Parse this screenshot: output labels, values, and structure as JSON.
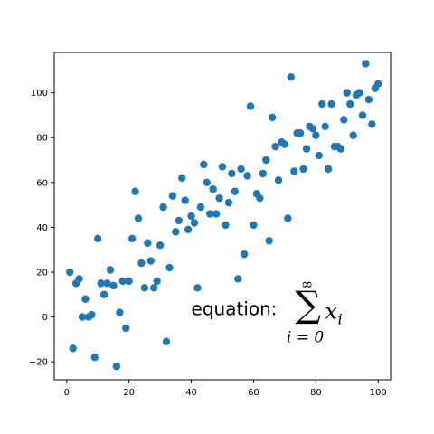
{
  "chart_data": {
    "type": "scatter",
    "title": "",
    "xlabel": "",
    "ylabel": "",
    "xlim": [
      -4,
      104
    ],
    "ylim": [
      -28,
      118
    ],
    "xticks": [
      0,
      20,
      40,
      60,
      80,
      100
    ],
    "yticks": [
      -20,
      0,
      20,
      40,
      60,
      80,
      100
    ],
    "xtick_labels": [
      "0",
      "20",
      "40",
      "60",
      "80",
      "100"
    ],
    "ytick_labels": [
      "−20",
      "0",
      "20",
      "40",
      "60",
      "80",
      "100"
    ],
    "grid": false,
    "legend": "none",
    "marker_color": "#1f77b4",
    "annotation": {
      "text": "equation:",
      "sum_symbol": "∑",
      "upper_limit": "∞",
      "lower_limit": "i = 0",
      "term": "x",
      "term_subscript": "i",
      "x": 40,
      "y": 0
    },
    "series": [
      {
        "x": [
          1,
          2,
          3,
          4,
          5,
          6,
          7,
          8,
          9,
          10,
          11,
          12,
          13,
          14,
          15,
          16,
          17,
          18,
          19,
          20,
          21,
          22,
          23,
          24,
          25,
          26,
          27,
          28,
          29,
          30,
          31,
          32,
          33,
          34,
          35,
          36,
          37,
          38,
          39,
          40,
          41,
          42,
          43,
          44,
          45,
          46,
          47,
          48,
          49,
          50,
          51,
          52,
          53,
          54,
          55,
          56,
          57,
          58,
          59,
          60,
          61,
          62,
          63,
          64,
          65,
          66,
          67,
          68,
          69,
          70,
          71,
          72,
          73,
          74,
          75,
          76,
          77,
          78,
          79,
          80,
          81,
          82,
          83,
          84,
          85,
          86,
          87,
          88,
          89,
          90,
          91,
          92,
          93,
          94,
          95,
          96,
          97,
          98,
          99,
          100
        ],
        "y": [
          20,
          -14,
          15,
          17,
          0,
          8,
          0,
          1,
          -18,
          35,
          15,
          10,
          15,
          21,
          14,
          -22,
          2,
          16,
          -5,
          16,
          35,
          56,
          44,
          24,
          13,
          33,
          25,
          13,
          16,
          32,
          49,
          -11,
          22,
          54,
          38,
          43,
          62,
          52,
          39,
          45,
          42,
          13,
          49,
          68,
          60,
          46,
          57,
          46,
          53,
          67,
          41,
          51,
          64,
          56,
          17,
          66,
          28,
          63,
          94,
          41,
          55,
          53,
          64,
          70,
          34,
          89,
          76,
          61,
          78,
          77,
          44,
          107,
          65,
          82,
          82,
          66,
          75,
          85,
          84,
          81,
          72,
          95,
          85,
          66,
          95,
          76,
          76,
          75,
          88,
          100,
          95,
          81,
          99,
          100,
          90,
          113,
          97,
          86,
          102,
          104
        ]
      }
    ]
  }
}
